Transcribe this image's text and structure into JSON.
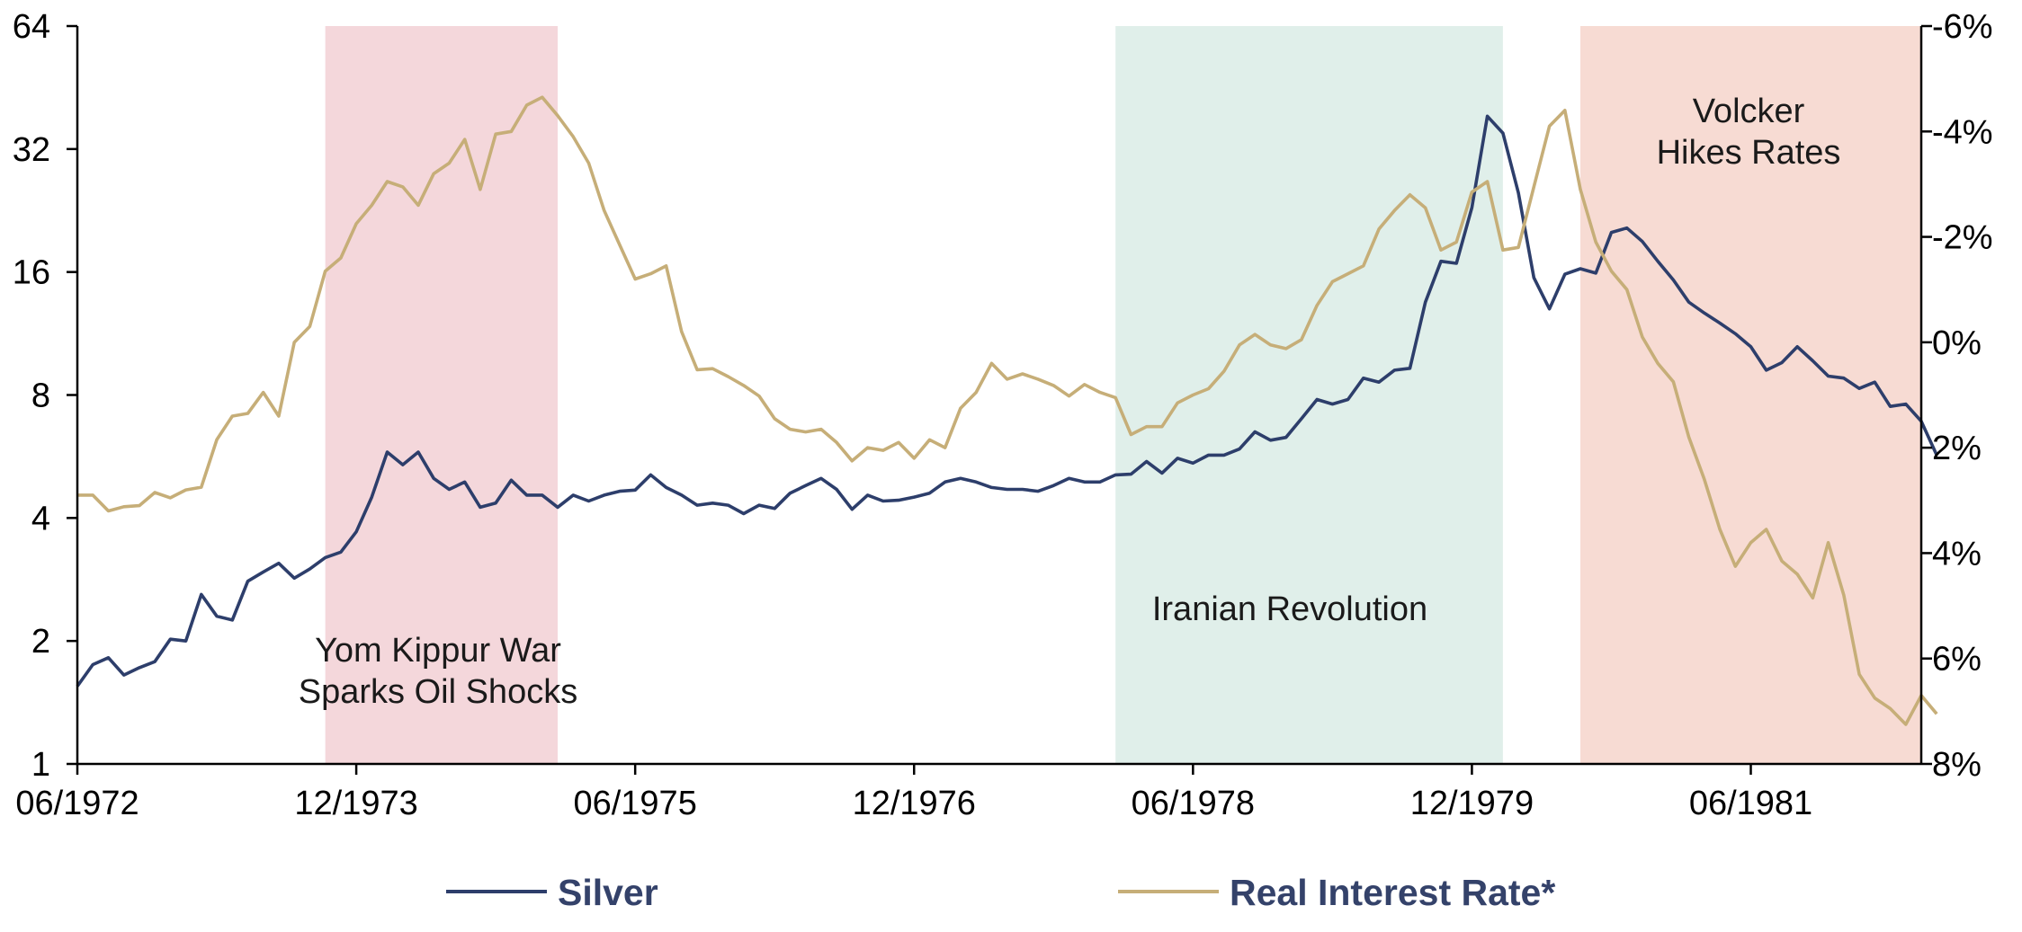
{
  "chart_data": {
    "type": "line",
    "title": "",
    "x_tick_labels": [
      "06/1972",
      "12/1973",
      "06/1975",
      "12/1976",
      "06/1978",
      "12/1979",
      "06/1981"
    ],
    "x_range": [
      "1972-06",
      "1982-05"
    ],
    "y_left": {
      "scale": "log2",
      "range": [
        1,
        64
      ],
      "tick_values": [
        1,
        2,
        4,
        8,
        16,
        32,
        64
      ],
      "tick_labels": [
        "1",
        "2",
        "4",
        "8",
        "16",
        "32",
        "64"
      ]
    },
    "y_right": {
      "inverted": true,
      "range_percent": [
        -6,
        8
      ],
      "tick_values": [
        -6,
        -4,
        -2,
        0,
        2,
        4,
        6,
        8
      ],
      "tick_labels": [
        "-6%",
        "-4%",
        "-2%",
        "0%",
        "2%",
        "4%",
        "6%",
        "8%"
      ]
    },
    "grid": false,
    "legend_position": "bottom",
    "shaded_periods": [
      {
        "start": "1973-10",
        "end": "1975-01",
        "color": "#f4d7db",
        "label_lines": [
          "Yom Kippur War",
          "Sparks Oil Shocks"
        ]
      },
      {
        "start": "1978-01",
        "end": "1980-02",
        "color": "#e0efea",
        "label_lines": [
          "Iranian Revolution"
        ]
      },
      {
        "start": "1980-07",
        "end": "1982-05",
        "color": "#f7dbd3",
        "label_lines": [
          "Volcker",
          "Hikes Rates"
        ]
      }
    ],
    "series": [
      {
        "name": "Silver",
        "axis": "left",
        "color": "#2d3e6b",
        "start": "1972-06",
        "values": [
          1.55,
          1.75,
          1.82,
          1.65,
          1.72,
          1.78,
          2.02,
          2.0,
          2.6,
          2.3,
          2.25,
          2.8,
          2.95,
          3.1,
          2.85,
          3.0,
          3.2,
          3.3,
          3.7,
          4.5,
          5.8,
          5.4,
          5.8,
          5.0,
          4.7,
          4.9,
          4.25,
          4.35,
          4.95,
          4.55,
          4.55,
          4.25,
          4.55,
          4.4,
          4.55,
          4.65,
          4.68,
          5.1,
          4.75,
          4.55,
          4.3,
          4.35,
          4.3,
          4.1,
          4.3,
          4.22,
          4.6,
          4.8,
          5.0,
          4.7,
          4.2,
          4.55,
          4.4,
          4.42,
          4.5,
          4.6,
          4.9,
          5.0,
          4.9,
          4.75,
          4.7,
          4.7,
          4.65,
          4.8,
          5.0,
          4.9,
          4.9,
          5.1,
          5.12,
          5.5,
          5.15,
          5.6,
          5.45,
          5.7,
          5.7,
          5.9,
          6.5,
          6.2,
          6.3,
          7.0,
          7.8,
          7.6,
          7.8,
          8.8,
          8.6,
          9.2,
          9.3,
          13.5,
          17.0,
          16.8,
          23.0,
          38.5,
          35.0,
          25.0,
          15.5,
          13.0,
          15.8,
          16.3,
          15.9,
          20.0,
          20.5,
          19.0,
          17.0,
          15.3,
          13.5,
          12.7,
          12.0,
          11.3,
          10.5,
          9.2,
          9.6,
          10.5,
          9.7,
          8.9,
          8.8,
          8.3,
          8.6,
          7.5,
          7.6,
          6.9,
          5.7
        ]
      },
      {
        "name": "Real Interest Rate*",
        "axis": "right",
        "color": "#c6ae78",
        "start": "1972-06",
        "values_percent": [
          2.9,
          2.9,
          3.2,
          3.12,
          3.1,
          2.85,
          2.95,
          2.8,
          2.75,
          1.85,
          1.4,
          1.35,
          0.95,
          1.4,
          0.0,
          -0.3,
          -1.35,
          -1.6,
          -2.25,
          -2.6,
          -3.05,
          -2.95,
          -2.6,
          -3.2,
          -3.4,
          -3.85,
          -2.9,
          -3.95,
          -4.0,
          -4.5,
          -4.65,
          -4.3,
          -3.9,
          -3.4,
          -2.5,
          -1.85,
          -1.2,
          -1.3,
          -1.45,
          -0.2,
          0.52,
          0.5,
          0.65,
          0.82,
          1.02,
          1.45,
          1.65,
          1.7,
          1.65,
          1.9,
          2.25,
          2.0,
          2.05,
          1.9,
          2.2,
          1.85,
          2.0,
          1.25,
          0.95,
          0.4,
          0.7,
          0.6,
          0.7,
          0.82,
          1.02,
          0.8,
          0.95,
          1.05,
          1.75,
          1.6,
          1.6,
          1.15,
          1.0,
          0.88,
          0.55,
          0.05,
          -0.15,
          0.05,
          0.12,
          -0.05,
          -0.7,
          -1.15,
          -1.3,
          -1.45,
          -2.15,
          -2.5,
          -2.8,
          -2.55,
          -1.75,
          -1.9,
          -2.85,
          -3.05,
          -1.75,
          -1.8,
          -2.95,
          -4.1,
          -4.4,
          -2.9,
          -1.9,
          -1.35,
          -1.0,
          -0.1,
          0.4,
          0.75,
          1.8,
          2.6,
          3.55,
          4.25,
          3.8,
          3.55,
          4.15,
          4.4,
          4.85,
          3.8,
          4.8,
          6.3,
          6.75,
          6.95,
          7.25,
          6.7,
          7.05
        ]
      }
    ]
  }
}
